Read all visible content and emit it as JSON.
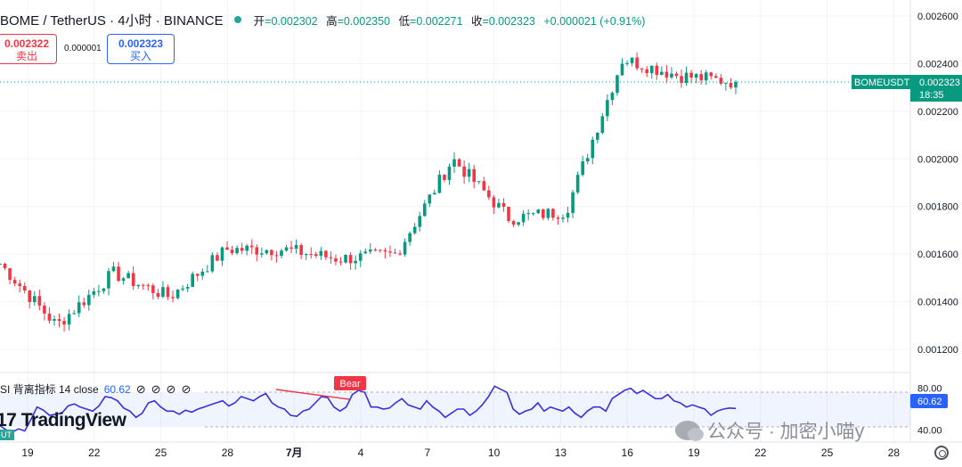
{
  "header": {
    "symbol": "BOME / TetherUS · 4小时 · BINANCE",
    "open_label": "开",
    "open": "=0.002302",
    "high_label": "高",
    "high": "=0.002350",
    "low_label": "低",
    "low": "=0.002271",
    "close_label": "收",
    "close": "=0.002323",
    "change": "+0.000021 (+0.91%)"
  },
  "trade": {
    "sell_price": "0.002322",
    "sell_label": "卖出",
    "spread": "0.000001",
    "buy_price": "0.002323",
    "buy_label": "买入"
  },
  "price_axis": {
    "ticks": [
      "0.002600",
      "0.002400",
      "0.002200",
      "0.002000",
      "0.001800",
      "0.001600",
      "0.001400",
      "0.001200"
    ],
    "current_label": "BOMEUSDT",
    "current_price": "0.002323",
    "countdown": "18:35"
  },
  "rsi": {
    "legend_prefix": "SI 背离指标 14 close",
    "value": "60.62",
    "icons": [
      "⊘",
      "⊘",
      "⊘",
      "⊘"
    ],
    "axis_ticks": [
      "80.00",
      "40.00"
    ],
    "current": "60.62",
    "bear_label": "Bear"
  },
  "time_axis": {
    "labels": [
      "19",
      "22",
      "25",
      "28",
      "7月",
      "4",
      "7",
      "10",
      "13",
      "16",
      "19",
      "22",
      "25",
      "28"
    ]
  },
  "branding": {
    "logo": "17 TradingView",
    "logo_badge": "UT"
  },
  "watermark": {
    "text": "公众号 · 加密小喵y"
  },
  "colors": {
    "up": "#089981",
    "down": "#f23645",
    "rsi": "#3a2fdb",
    "accent": "#2962ff"
  },
  "chart_data": {
    "type": "candlestick",
    "symbol": "BOMEUSDT",
    "interval": "4H",
    "ylim": [
      0.0012,
      0.0026
    ],
    "key_prices": [
      {
        "date": "19",
        "price": 0.00156
      },
      {
        "date": "22",
        "price": 0.0013
      },
      {
        "date": "25",
        "price": 0.00152
      },
      {
        "date": "28",
        "price": 0.00142
      },
      {
        "date": "7月",
        "price": 0.00162
      },
      {
        "date": "4",
        "price": 0.00162
      },
      {
        "date": "7",
        "price": 0.00158
      },
      {
        "date": "10",
        "price": 0.0016
      },
      {
        "date": "10-11",
        "price": 0.002
      },
      {
        "date": "13",
        "price": 0.00175
      },
      {
        "date": "16",
        "price": 0.00178
      },
      {
        "date": "18",
        "price": 0.00242
      },
      {
        "date": "19",
        "price": 0.00235
      },
      {
        "date": "20",
        "price": 0.002323
      }
    ],
    "rsi_series": {
      "name": "RSI 14",
      "ylim": [
        30,
        90
      ],
      "values": [
        44,
        40,
        38,
        41,
        39,
        50,
        62,
        59,
        54,
        55,
        56,
        63,
        65,
        62,
        60,
        58,
        63,
        72,
        71,
        68,
        61,
        58,
        52,
        56,
        66,
        68,
        62,
        58,
        58,
        55,
        59,
        57,
        60,
        62,
        64,
        66,
        68,
        63,
        66,
        72,
        70,
        68,
        72,
        75,
        66,
        62,
        60,
        54,
        53,
        58,
        60,
        66,
        72,
        71,
        62,
        58,
        62,
        74,
        78,
        76,
        62,
        62,
        60,
        61,
        66,
        70,
        64,
        62,
        60,
        68,
        62,
        58,
        52,
        56,
        60,
        60,
        54,
        58,
        64,
        72,
        82,
        79,
        76,
        60,
        55,
        58,
        60,
        66,
        58,
        62,
        60,
        58,
        62,
        56,
        52,
        58,
        62,
        62,
        58,
        70,
        74,
        78,
        80,
        75,
        78,
        74,
        70,
        70,
        74,
        68,
        66,
        62,
        64,
        62,
        60,
        54,
        58,
        60,
        61,
        60.62
      ]
    }
  }
}
